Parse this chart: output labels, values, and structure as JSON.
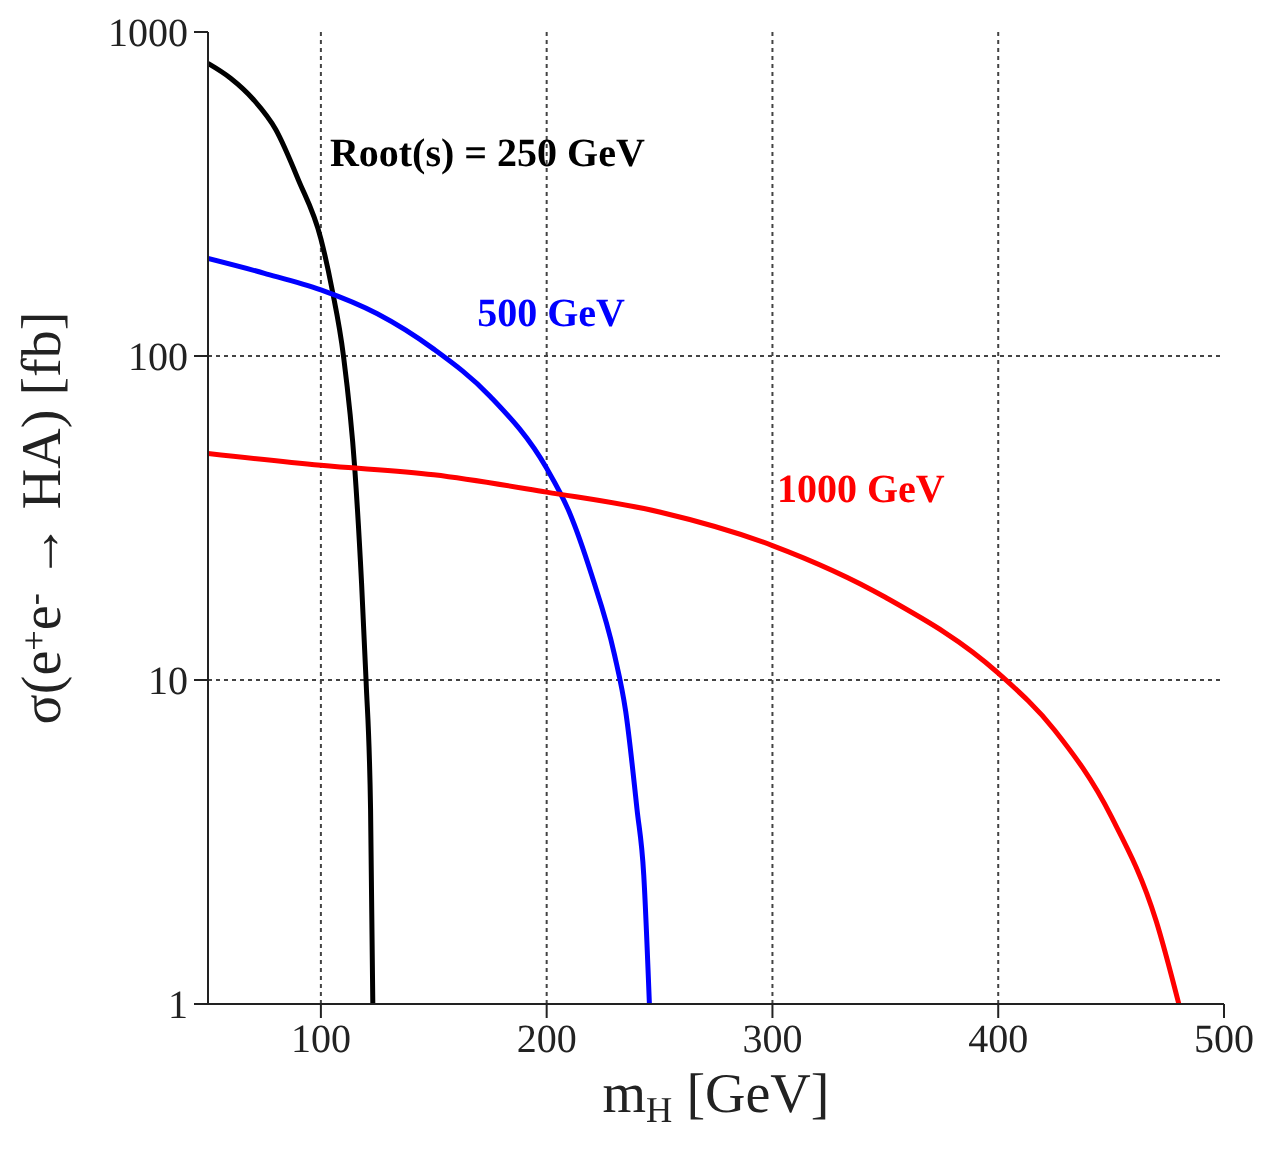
{
  "chart_data": {
    "type": "line",
    "xlabel": "m$_{H}$ [GeV]",
    "ylabel": "σ(e$^{+}$e$^{-}$ → HA) [fb]",
    "xlim": [
      50,
      500
    ],
    "xticks": [
      100,
      200,
      300,
      400,
      500
    ],
    "ylim": [
      1,
      1000
    ],
    "yticks": [
      1,
      10,
      100,
      1000
    ],
    "log": "y",
    "grid": true,
    "marker": "none",
    "line_style": "solid",
    "series": [
      {
        "color": "#000000",
        "x": [
          50,
          60,
          70,
          80,
          90,
          100,
          105,
          110,
          115,
          118,
          120,
          122,
          123
        ],
        "values": [
          800,
          720,
          620,
          500,
          350,
          230,
          160,
          100,
          45,
          20,
          10,
          4,
          1
        ]
      },
      {
        "color": "#0000ff",
        "x": [
          50,
          75,
          100,
          125,
          150,
          175,
          200,
          210,
          220,
          230,
          235,
          240,
          243,
          245.5
        ],
        "values": [
          200,
          180,
          160,
          135,
          105,
          75,
          45,
          33,
          21,
          12,
          8,
          4,
          2.5,
          1
        ]
      },
      {
        "color": "#ff0000",
        "x": [
          50,
          100,
          150,
          200,
          250,
          300,
          350,
          400,
          425,
          450,
          470,
          480
        ],
        "values": [
          50,
          46,
          43,
          38,
          33,
          26,
          18,
          10.5,
          7,
          3.8,
          1.8,
          1
        ]
      }
    ],
    "annotations": [
      "Root(s) = 250 GeV",
      "500 GeV",
      "1000 GeV"
    ]
  }
}
